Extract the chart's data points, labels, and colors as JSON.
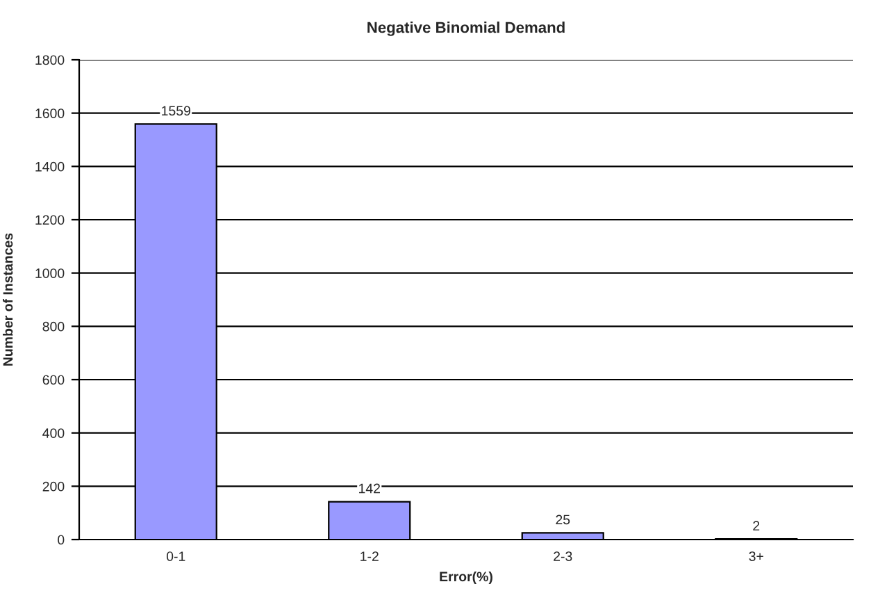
{
  "chart_data": {
    "type": "bar",
    "title": "Negative Binomial Demand",
    "xlabel": "Error(%)",
    "ylabel": "Number of Instances",
    "categories": [
      "0-1",
      "1-2",
      "2-3",
      "3+"
    ],
    "values": [
      1559,
      142,
      25,
      2
    ],
    "color": "#9999ff",
    "ylim": [
      0,
      1800
    ],
    "yticks": [
      0,
      200,
      400,
      600,
      800,
      1000,
      1200,
      1400,
      1600,
      1800
    ],
    "grid": "y",
    "data_labels": true
  }
}
